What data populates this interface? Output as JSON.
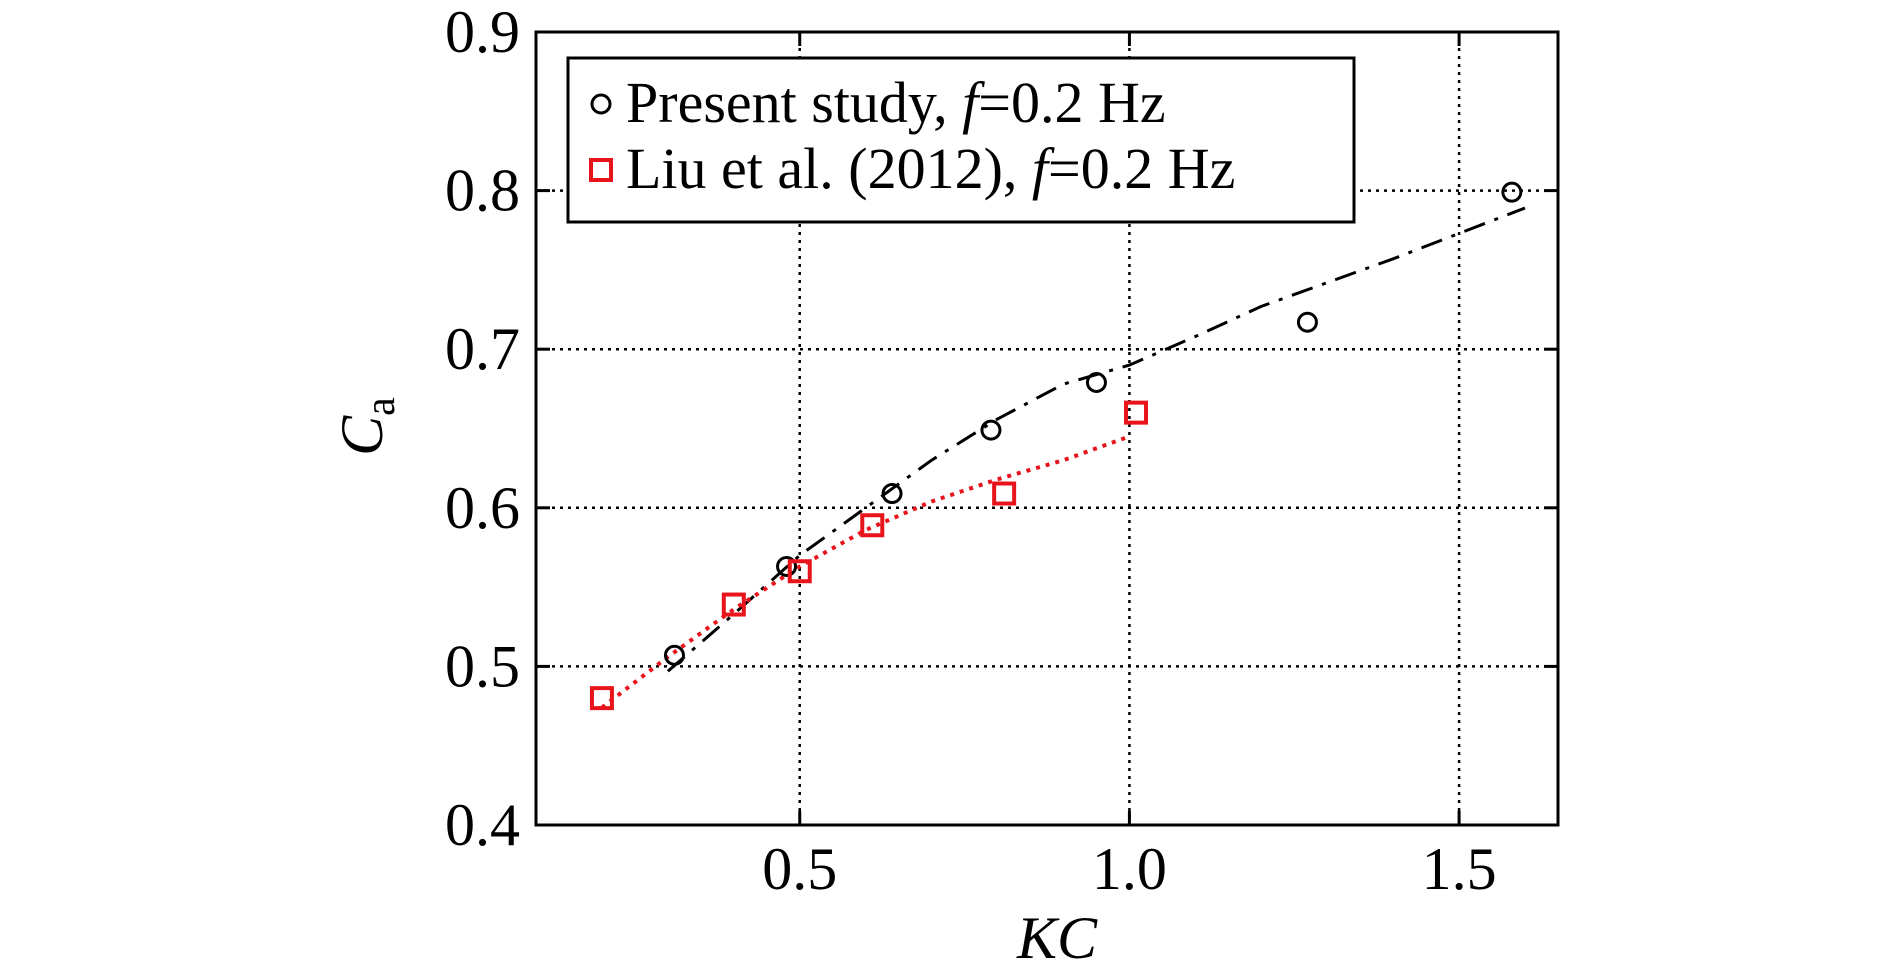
{
  "chart_data": {
    "type": "scatter",
    "xlabel": "KC",
    "ylabel_main": "C",
    "ylabel_sub": "a",
    "xlim": [
      0.1,
      1.65
    ],
    "ylim": [
      0.4,
      0.9
    ],
    "xticks": [
      0.5,
      1.0,
      1.5
    ],
    "xtick_labels": [
      "0.5",
      "1.0",
      "1.5"
    ],
    "yticks": [
      0.4,
      0.5,
      0.6,
      0.7,
      0.8,
      0.9
    ],
    "ytick_labels": [
      "0.4",
      "0.5",
      "0.6",
      "0.7",
      "0.8",
      "0.9"
    ],
    "grid": true,
    "legend_position": "top-left",
    "series": [
      {
        "name_prefix": "Present study, ",
        "name_italic": "f",
        "name_suffix": "=0.2 Hz",
        "marker": "circle",
        "color": "#000000",
        "points": [
          [
            0.31,
            0.507
          ],
          [
            0.48,
            0.563
          ],
          [
            0.64,
            0.609
          ],
          [
            0.79,
            0.649
          ],
          [
            0.95,
            0.679
          ],
          [
            1.27,
            0.717
          ],
          [
            1.58,
            0.799
          ]
        ],
        "fit_style": "dashdot",
        "fit": [
          [
            0.3,
            0.497
          ],
          [
            0.4,
            0.533
          ],
          [
            0.5,
            0.57
          ],
          [
            0.6,
            0.6
          ],
          [
            0.7,
            0.63
          ],
          [
            0.8,
            0.656
          ],
          [
            0.9,
            0.678
          ],
          [
            1.0,
            0.69
          ],
          [
            1.1,
            0.708
          ],
          [
            1.2,
            0.727
          ],
          [
            1.3,
            0.742
          ],
          [
            1.4,
            0.757
          ],
          [
            1.5,
            0.773
          ],
          [
            1.6,
            0.789
          ]
        ]
      },
      {
        "name_prefix": "Liu et al. (2012), ",
        "name_italic": "f",
        "name_suffix": "=0.2 Hz",
        "marker": "square",
        "color": "#e8141b",
        "points": [
          [
            0.2,
            0.48
          ],
          [
            0.4,
            0.539
          ],
          [
            0.5,
            0.56
          ],
          [
            0.61,
            0.589
          ],
          [
            0.81,
            0.609
          ],
          [
            1.01,
            0.66
          ]
        ],
        "fit_style": "dotted",
        "fit": [
          [
            0.2,
            0.474
          ],
          [
            0.3,
            0.506
          ],
          [
            0.4,
            0.536
          ],
          [
            0.5,
            0.563
          ],
          [
            0.6,
            0.586
          ],
          [
            0.7,
            0.604
          ],
          [
            0.8,
            0.618
          ],
          [
            0.9,
            0.63
          ],
          [
            1.0,
            0.645
          ]
        ]
      }
    ]
  }
}
